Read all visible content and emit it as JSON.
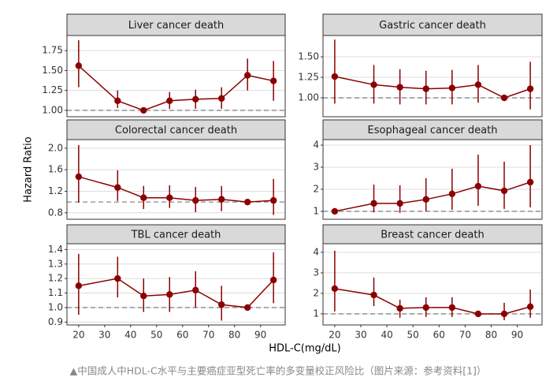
{
  "y_label": "Hazard Ratio",
  "x_label": "HDL-C(mg/dL)",
  "xlim": [
    15.5,
    99.5
  ],
  "xticks": [
    20,
    30,
    40,
    50,
    60,
    70,
    80,
    90
  ],
  "caption": "▲中国成人中HDL-C水平与主要癌症亚型死亡率的多变量校正风险比（图片来源：参考资料[1]）",
  "chart_data": [
    {
      "type": "line",
      "title": "Liver cancer death",
      "color": "#8b0000",
      "reference": 1,
      "x": [
        20,
        35,
        45,
        55,
        65,
        75,
        85,
        95
      ],
      "values": [
        1.56,
        1.12,
        1.0,
        1.12,
        1.14,
        1.15,
        1.44,
        1.37
      ],
      "lower": [
        1.29,
        1.03,
        null,
        1.02,
        1.02,
        1.02,
        1.25,
        1.12
      ],
      "upper": [
        1.88,
        1.25,
        null,
        1.23,
        1.26,
        1.29,
        1.65,
        1.62
      ],
      "ylim": [
        0.92,
        1.94
      ],
      "yticks": [
        {
          "value": 1,
          "label": "1.00"
        },
        1.25,
        {
          "value": 1.5,
          "label": "1.50"
        },
        1.75
      ]
    },
    {
      "type": "line",
      "title": "Gastric cancer death",
      "color": "#8b0000",
      "reference": 1,
      "x": [
        20,
        35,
        45,
        55,
        65,
        75,
        85,
        95
      ],
      "values": [
        1.26,
        1.16,
        1.13,
        1.11,
        1.12,
        1.16,
        1.0,
        1.11
      ],
      "lower": [
        0.93,
        0.93,
        0.92,
        0.92,
        0.92,
        0.94,
        null,
        0.86
      ],
      "upper": [
        1.71,
        1.4,
        1.35,
        1.33,
        1.34,
        1.4,
        null,
        1.44
      ],
      "ylim": [
        0.77,
        1.76
      ],
      "yticks": [
        {
          "value": 1,
          "label": "1.00"
        },
        1.25,
        {
          "value": 1.5,
          "label": "1.50"
        }
      ]
    },
    {
      "type": "line",
      "title": "Colorectal cancer death",
      "color": "#8b0000",
      "reference": 1,
      "x": [
        20,
        35,
        45,
        55,
        65,
        75,
        85,
        95
      ],
      "values": [
        1.47,
        1.27,
        1.08,
        1.08,
        1.03,
        1.05,
        1.0,
        1.03
      ],
      "lower": [
        0.99,
        1.02,
        0.87,
        0.89,
        0.81,
        0.83,
        null,
        0.76
      ],
      "upper": [
        2.06,
        1.59,
        1.3,
        1.31,
        1.28,
        1.3,
        null,
        1.43
      ],
      "ylim": [
        0.68,
        2.16
      ],
      "yticks": [
        0.8,
        1.2,
        1.6,
        {
          "value": 2,
          "label": "2.0"
        }
      ]
    },
    {
      "type": "line",
      "title": "Esophageal cancer death",
      "color": "#8b0000",
      "reference": 1,
      "x": [
        20,
        35,
        45,
        55,
        65,
        75,
        85,
        95
      ],
      "values": [
        1.0,
        1.36,
        1.36,
        1.54,
        1.79,
        2.14,
        1.93,
        2.32
      ],
      "lower": [
        null,
        0.95,
        0.93,
        1.0,
        1.07,
        1.25,
        1.11,
        1.18
      ],
      "upper": [
        null,
        2.21,
        2.18,
        2.5,
        2.93,
        3.57,
        3.25,
        4.0
      ],
      "ylim": [
        0.64,
        4.25
      ],
      "yticks": [
        1,
        2,
        3,
        4
      ]
    },
    {
      "type": "line",
      "title": "TBL cancer death",
      "color": "#8b0000",
      "reference": 1,
      "x": [
        20,
        35,
        45,
        55,
        65,
        75,
        85,
        95
      ],
      "values": [
        1.15,
        1.2,
        1.08,
        1.09,
        1.12,
        1.02,
        1.0,
        1.19
      ],
      "lower": [
        0.95,
        1.07,
        0.97,
        0.97,
        1.0,
        0.91,
        null,
        1.03
      ],
      "upper": [
        1.37,
        1.35,
        1.2,
        1.21,
        1.25,
        1.15,
        null,
        1.38
      ],
      "ylim": [
        0.88,
        1.44
      ],
      "yticks": [
        0.9,
        {
          "value": 1,
          "label": "1.0"
        },
        1.1,
        1.2,
        1.3,
        1.4
      ]
    },
    {
      "type": "line",
      "title": "Breast cancer death",
      "color": "#8b0000",
      "reference": 1,
      "x": [
        20,
        35,
        45,
        55,
        65,
        75,
        85,
        95
      ],
      "values": [
        2.23,
        1.92,
        1.27,
        1.31,
        1.31,
        1.0,
        1.0,
        1.35
      ],
      "lower": [
        1.12,
        1.38,
        0.81,
        0.85,
        0.85,
        null,
        0.69,
        0.81
      ],
      "upper": [
        4.08,
        2.77,
        1.69,
        1.81,
        1.81,
        null,
        1.54,
        2.19
      ],
      "ylim": [
        0.46,
        4.42
      ],
      "yticks": [
        1,
        2,
        3,
        4
      ]
    }
  ]
}
